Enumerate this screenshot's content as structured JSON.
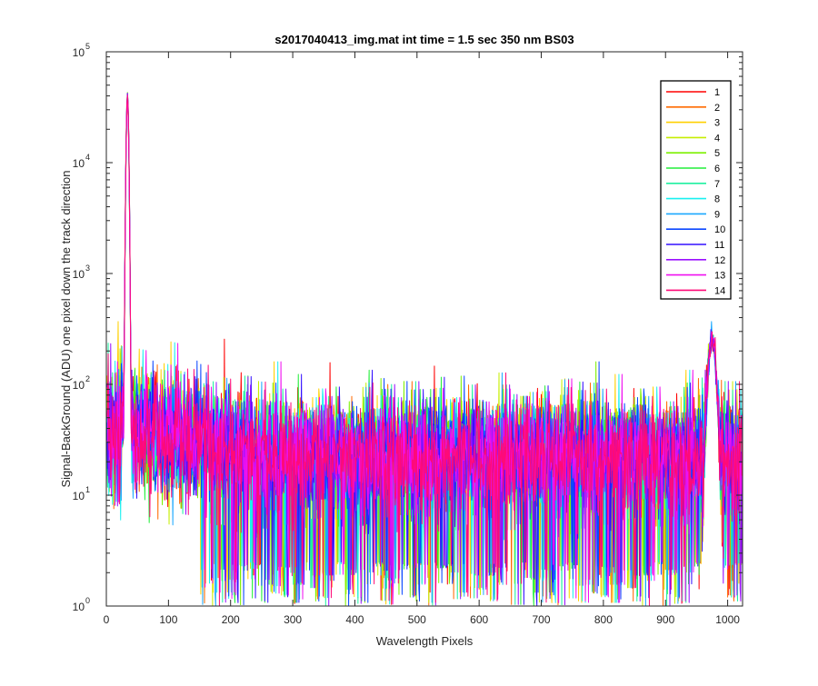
{
  "chart_data": {
    "type": "line",
    "title": "s2017040413_img.mat int time = 1.5 sec  350 nm BS03",
    "xlabel": "Wavelength Pixels",
    "ylabel": "Signal-BackGround (ADU) one pixel down the track direction",
    "xlim": [
      0,
      1024
    ],
    "ylim": [
      1,
      100000
    ],
    "yscale": "log",
    "x_ticks": [
      0,
      100,
      200,
      300,
      400,
      500,
      600,
      700,
      800,
      900,
      1000
    ],
    "y_ticks": [
      {
        "base": "10",
        "exp": "0",
        "value": 1
      },
      {
        "base": "10",
        "exp": "1",
        "value": 10
      },
      {
        "base": "10",
        "exp": "2",
        "value": 100
      },
      {
        "base": "10",
        "exp": "3",
        "value": 1000
      },
      {
        "base": "10",
        "exp": "4",
        "value": 10000
      },
      {
        "base": "10",
        "exp": "5",
        "value": 100000
      }
    ],
    "grid": false,
    "legend_position": "top-right",
    "features": {
      "peak_1": {
        "x": 34,
        "y": 38000
      },
      "peak_2": {
        "x": 975,
        "y": 250
      },
      "baseline_start": 40,
      "baseline_end": 22
    },
    "series": [
      {
        "name": "1",
        "color": "#ff0000"
      },
      {
        "name": "2",
        "color": "#ff6a00"
      },
      {
        "name": "3",
        "color": "#ffd000"
      },
      {
        "name": "4",
        "color": "#c6ee00"
      },
      {
        "name": "5",
        "color": "#7cf000"
      },
      {
        "name": "6",
        "color": "#22ee3a"
      },
      {
        "name": "7",
        "color": "#1ef0a0"
      },
      {
        "name": "8",
        "color": "#19f0f0"
      },
      {
        "name": "9",
        "color": "#1aa8ff"
      },
      {
        "name": "10",
        "color": "#0a46ff"
      },
      {
        "name": "11",
        "color": "#3410ff"
      },
      {
        "name": "12",
        "color": "#9a10ff"
      },
      {
        "name": "13",
        "color": "#f010f0"
      },
      {
        "name": "14",
        "color": "#ff0a78"
      }
    ]
  }
}
